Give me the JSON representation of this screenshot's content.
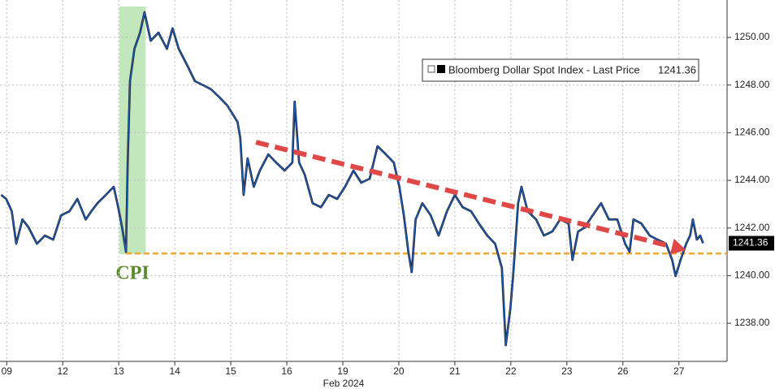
{
  "chart_data": {
    "type": "line",
    "xlabel": "Feb 2024",
    "xlim": [
      -0.12,
      12.86
    ],
    "ylim": [
      1236.4,
      1251.57
    ],
    "xticks": [
      {
        "value": 0,
        "label": "09"
      },
      {
        "value": 1,
        "label": "12"
      },
      {
        "value": 2,
        "label": "13"
      },
      {
        "value": 3,
        "label": "14"
      },
      {
        "value": 4,
        "label": "15"
      },
      {
        "value": 5,
        "label": "16"
      },
      {
        "value": 6,
        "label": "19"
      },
      {
        "value": 7,
        "label": "20"
      },
      {
        "value": 8,
        "label": "21"
      },
      {
        "value": 9,
        "label": "22"
      },
      {
        "value": 10,
        "label": "23"
      },
      {
        "value": 11,
        "label": "26"
      },
      {
        "value": 12,
        "label": "27"
      }
    ],
    "yticks": [
      {
        "value": 1238,
        "label": "1238.00"
      },
      {
        "value": 1240,
        "label": "1240.00"
      },
      {
        "value": 1242,
        "label": "1242.00"
      },
      {
        "value": 1244,
        "label": "1244.00"
      },
      {
        "value": 1246,
        "label": "1246.00"
      },
      {
        "value": 1248,
        "label": "1248.00"
      },
      {
        "value": 1250,
        "label": "1250.00"
      }
    ],
    "grid": true,
    "highlight": {
      "xlim": [
        2.01,
        2.48
      ],
      "label": "CPI",
      "color": "#b9e3b2"
    },
    "hline": {
      "value": 1240.93,
      "color": "#f0a830"
    },
    "arrow": {
      "x": [
        4.45,
        12.13
      ],
      "y": [
        1245.6,
        1241.07
      ],
      "color": "#e04848"
    },
    "series": [
      {
        "name": "Bloomberg Dollar Spot Index - Last Price",
        "color": "#1f5fbf",
        "last_value": 1241.36,
        "x": [
          -0.1,
          -0.01,
          0.09,
          0.17,
          0.28,
          0.39,
          0.54,
          0.68,
          0.83,
          0.97,
          1.12,
          1.26,
          1.41,
          1.51,
          1.62,
          1.77,
          1.91,
          1.99,
          2.06,
          2.13,
          2.16,
          2.2,
          2.28,
          2.38,
          2.46,
          2.57,
          2.71,
          2.86,
          2.96,
          3.07,
          3.22,
          3.36,
          3.51,
          3.65,
          3.8,
          3.94,
          4.12,
          4.17,
          4.23,
          4.3,
          4.41,
          4.52,
          4.67,
          4.81,
          4.96,
          5.1,
          5.14,
          5.22,
          5.32,
          5.46,
          5.61,
          5.75,
          5.9,
          6.04,
          6.19,
          6.33,
          6.48,
          6.62,
          6.77,
          6.91,
          7.01,
          7.09,
          7.17,
          7.23,
          7.3,
          7.42,
          7.57,
          7.71,
          7.86,
          8.0,
          8.14,
          8.29,
          8.43,
          8.58,
          8.72,
          8.84,
          8.91,
          8.99,
          9.04,
          9.13,
          9.19,
          9.3,
          9.45,
          9.59,
          9.74,
          9.88,
          10.03,
          10.1,
          10.2,
          10.32,
          10.46,
          10.61,
          10.75,
          10.9,
          11.04,
          11.12,
          11.19,
          11.33,
          11.48,
          11.62,
          11.77,
          11.88,
          11.94,
          12.03,
          12.13,
          12.2,
          12.25,
          12.32,
          12.38,
          12.43
        ],
        "values": [
          1243.39,
          1243.22,
          1242.7,
          1241.34,
          1242.36,
          1242.02,
          1241.34,
          1241.68,
          1241.51,
          1242.53,
          1242.7,
          1243.22,
          1242.36,
          1242.7,
          1243.04,
          1243.39,
          1243.73,
          1242.87,
          1242.02,
          1241.0,
          1244.75,
          1248.16,
          1249.52,
          1250.2,
          1251.06,
          1249.86,
          1250.2,
          1249.52,
          1250.38,
          1249.52,
          1248.84,
          1248.16,
          1247.99,
          1247.82,
          1247.48,
          1247.14,
          1246.45,
          1245.77,
          1243.39,
          1244.92,
          1243.73,
          1244.41,
          1245.09,
          1244.75,
          1244.41,
          1244.75,
          1247.31,
          1244.75,
          1244.24,
          1243.04,
          1242.87,
          1243.39,
          1243.22,
          1243.73,
          1244.41,
          1243.9,
          1244.07,
          1245.43,
          1245.09,
          1244.75,
          1243.73,
          1242.53,
          1241.0,
          1240.15,
          1242.36,
          1243.04,
          1242.53,
          1241.68,
          1242.7,
          1243.39,
          1242.87,
          1242.7,
          1242.19,
          1241.68,
          1241.34,
          1240.32,
          1237.08,
          1238.61,
          1239.98,
          1243.04,
          1243.73,
          1242.7,
          1242.36,
          1241.68,
          1241.85,
          1242.36,
          1242.19,
          1240.66,
          1241.85,
          1242.02,
          1242.53,
          1243.04,
          1242.36,
          1242.36,
          1241.34,
          1241.0,
          1242.36,
          1242.19,
          1241.68,
          1241.51,
          1241.34,
          1240.66,
          1239.98,
          1240.66,
          1241.34,
          1241.68,
          1242.36,
          1241.51,
          1241.68,
          1241.36
        ]
      }
    ]
  }
}
